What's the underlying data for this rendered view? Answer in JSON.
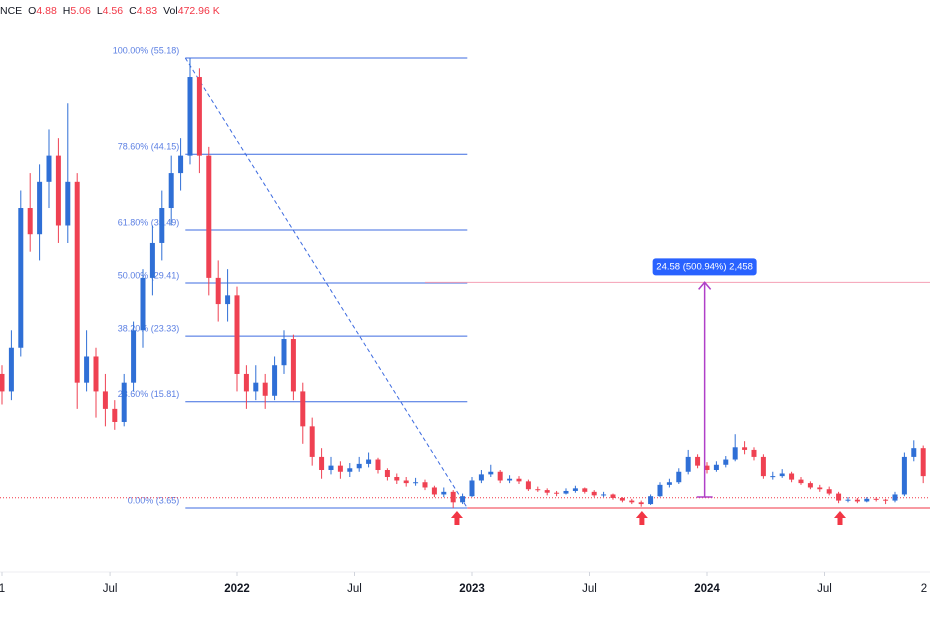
{
  "chart_data": {
    "type": "candlestick",
    "header": {
      "symbol": "NCE",
      "ohlc": [
        {
          "label": "O",
          "value": 4.88
        },
        {
          "label": "H",
          "value": 5.06
        },
        {
          "label": "L",
          "value": 4.56
        },
        {
          "label": "C",
          "value": 4.83
        }
      ],
      "volume": {
        "label": "Vol",
        "value": "472.96 K"
      }
    },
    "up_color": "#2f6fd6",
    "down_color": "#ef4152",
    "xlim": [
      2020.9915,
      2024.949
    ],
    "ylim": [
      -3.45,
      61.82
    ],
    "xticks": [
      {
        "value": 2021,
        "label": "1"
      },
      {
        "value": 2021.46,
        "label": "Jul"
      },
      2022,
      {
        "value": 2022.5,
        "label": "Jul"
      },
      2023,
      {
        "value": 2023.5,
        "label": "Jul"
      },
      2024,
      {
        "value": 2024.5,
        "label": "Jul"
      },
      {
        "value": 2025,
        "label": "2"
      }
    ],
    "x": [
      2021,
      2021.04,
      2021.08,
      2021.12,
      2021.16,
      2021.2,
      2021.24,
      2021.28,
      2021.32,
      2021.36,
      2021.4,
      2021.44,
      2021.48,
      2021.52,
      2021.56,
      2021.6,
      2021.64,
      2021.68,
      2021.72,
      2021.76,
      2021.8,
      2021.84,
      2021.88,
      2021.92,
      2021.96,
      2022,
      2022.04,
      2022.08,
      2022.12,
      2022.16,
      2022.2,
      2022.24,
      2022.28,
      2022.32,
      2022.36,
      2022.4,
      2022.44,
      2022.48,
      2022.52,
      2022.56,
      2022.6,
      2022.64,
      2022.68,
      2022.72,
      2022.76,
      2022.8,
      2022.84,
      2022.88,
      2022.92,
      2022.96,
      2023,
      2023.04,
      2023.08,
      2023.12,
      2023.16,
      2023.2,
      2023.24,
      2023.28,
      2023.32,
      2023.36,
      2023.4,
      2023.44,
      2023.48,
      2023.52,
      2023.56,
      2023.6,
      2023.64,
      2023.68,
      2023.72,
      2023.76,
      2023.8,
      2023.84,
      2023.88,
      2023.92,
      2023.96,
      2024,
      2024.04,
      2024.08,
      2024.12,
      2024.16,
      2024.2,
      2024.24,
      2024.28,
      2024.32,
      2024.36,
      2024.4,
      2024.44,
      2024.48,
      2024.52,
      2024.56,
      2024.6,
      2024.64,
      2024.68,
      2024.72,
      2024.76,
      2024.8,
      2024.84,
      2024.88,
      2024.92
    ],
    "candles": [
      [
        19,
        20,
        15.5,
        17
      ],
      [
        17,
        24,
        16,
        22
      ],
      [
        22,
        40,
        21,
        38
      ],
      [
        38,
        42,
        33,
        35
      ],
      [
        35,
        43,
        32,
        41
      ],
      [
        41,
        47,
        38,
        44
      ],
      [
        44,
        46,
        34,
        36
      ],
      [
        36,
        50,
        34,
        41
      ],
      [
        41,
        42,
        15,
        18
      ],
      [
        18,
        24,
        17,
        21
      ],
      [
        21,
        22,
        14,
        17
      ],
      [
        17,
        19,
        13,
        15
      ],
      [
        15,
        16,
        12.6,
        13.5
      ],
      [
        13.5,
        19,
        13,
        18
      ],
      [
        18,
        25,
        17,
        24
      ],
      [
        24,
        31,
        22,
        30
      ],
      [
        30,
        36,
        28,
        34
      ],
      [
        34,
        40,
        32,
        38
      ],
      [
        38,
        44,
        36,
        42
      ],
      [
        42,
        46,
        40,
        44
      ],
      [
        44,
        55.18,
        43,
        53
      ],
      [
        53,
        54,
        42,
        44
      ],
      [
        44,
        45,
        28,
        30
      ],
      [
        30,
        32,
        25,
        27
      ],
      [
        27,
        31,
        25,
        28
      ],
      [
        28,
        29,
        17,
        19
      ],
      [
        19,
        20,
        15,
        17
      ],
      [
        17,
        20,
        16,
        18
      ],
      [
        18,
        19,
        15,
        16.5
      ],
      [
        16.5,
        21,
        16,
        20
      ],
      [
        20,
        24,
        19,
        23
      ],
      [
        23,
        23.5,
        16,
        17
      ],
      [
        17,
        18,
        11,
        13
      ],
      [
        13,
        14,
        8.5,
        9.5
      ],
      [
        9.5,
        10.5,
        7,
        8
      ],
      [
        8,
        9.5,
        7.5,
        8.5
      ],
      [
        8.5,
        9,
        7,
        7.8
      ],
      [
        7.8,
        8.8,
        7.2,
        8.2
      ],
      [
        8.2,
        9.5,
        7.8,
        8.7
      ],
      [
        8.7,
        10,
        8.3,
        9.2
      ],
      [
        9.2,
        9.4,
        7.6,
        8
      ],
      [
        8,
        8.2,
        6.8,
        7.2
      ],
      [
        7.2,
        7.6,
        6.4,
        6.8
      ],
      [
        6.8,
        7.2,
        6.1,
        6.5
      ],
      [
        6.5,
        7.1,
        6.2,
        6.6
      ],
      [
        6.6,
        6.9,
        5.7,
        6
      ],
      [
        6,
        6.2,
        4.9,
        5.2
      ],
      [
        5.2,
        6,
        4.9,
        5.5
      ],
      [
        5.5,
        5.7,
        3.65,
        4.3
      ],
      [
        4.3,
        5.3,
        4.1,
        5
      ],
      [
        5,
        7.2,
        4.9,
        6.8
      ],
      [
        6.8,
        8,
        6.5,
        7.5
      ],
      [
        7.5,
        8.6,
        7.2,
        7.8
      ],
      [
        7.8,
        8,
        6.5,
        6.8
      ],
      [
        6.8,
        7.4,
        6.5,
        7
      ],
      [
        7,
        7.3,
        6.4,
        6.7
      ],
      [
        6.7,
        6.9,
        5.6,
        5.8
      ],
      [
        5.8,
        6.1,
        5.5,
        5.7
      ],
      [
        5.7,
        5.9,
        5.1,
        5.4
      ],
      [
        5.4,
        5.6,
        5,
        5.3
      ],
      [
        5.3,
        5.9,
        5.2,
        5.6
      ],
      [
        5.6,
        6.2,
        5.4,
        5.9
      ],
      [
        5.9,
        6,
        5.3,
        5.5
      ],
      [
        5.5,
        5.7,
        4.9,
        5.1
      ],
      [
        5.1,
        5.5,
        4.9,
        5.2
      ],
      [
        5.2,
        5.3,
        4.6,
        4.8
      ],
      [
        4.8,
        4.9,
        4.3,
        4.5
      ],
      [
        4.5,
        4.7,
        4.1,
        4.3
      ],
      [
        4.3,
        4.5,
        3.8,
        4.1
      ],
      [
        4.1,
        5.2,
        4,
        5
      ],
      [
        5,
        6.6,
        4.9,
        6.3
      ],
      [
        6.3,
        7,
        6,
        6.6
      ],
      [
        6.6,
        8.2,
        6.4,
        7.8
      ],
      [
        7.8,
        10.3,
        7.5,
        9.5
      ],
      [
        9.5,
        9.8,
        8.2,
        8.5
      ],
      [
        8.5,
        8.9,
        7.6,
        8
      ],
      [
        8,
        9,
        7.8,
        8.6
      ],
      [
        8.6,
        9.6,
        8.3,
        9.2
      ],
      [
        9.2,
        12.1,
        9,
        10.6
      ],
      [
        10.6,
        11.3,
        9.8,
        10.3
      ],
      [
        10.3,
        10.6,
        9.1,
        9.5
      ],
      [
        9.5,
        9.8,
        7,
        7.3
      ],
      [
        7.3,
        7.8,
        6.9,
        7.3
      ],
      [
        7.3,
        8.1,
        7.1,
        7.6
      ],
      [
        7.6,
        7.8,
        6.6,
        6.9
      ],
      [
        6.9,
        7.2,
        6.3,
        6.5
      ],
      [
        6.5,
        6.7,
        5.8,
        6
      ],
      [
        6,
        6.3,
        5.5,
        5.8
      ],
      [
        5.8,
        6.1,
        5.1,
        5.3
      ],
      [
        5.3,
        5.5,
        4.2,
        4.5
      ],
      [
        4.5,
        4.9,
        4.3,
        4.6
      ],
      [
        4.6,
        4.8,
        4.2,
        4.4
      ],
      [
        4.4,
        4.9,
        4.3,
        4.7
      ],
      [
        4.7,
        4.9,
        4.4,
        4.6
      ],
      [
        4.6,
        4.7,
        4.1,
        4.5
      ],
      [
        4.5,
        5.5,
        4.3,
        5.2
      ],
      [
        5.2,
        10,
        5,
        9.5
      ],
      [
        9.5,
        11.4,
        9,
        10.5
      ],
      [
        10.5,
        10.8,
        6.5,
        7.3
      ]
    ],
    "fib": {
      "x_start": 2021.78,
      "x_end": 2022.98,
      "color": "#3d6be0",
      "levels": [
        {
          "label": "100.00% (55.18)",
          "value": 55.18
        },
        {
          "label": "78.60% (44.15)",
          "value": 44.15
        },
        {
          "label": "61.80% (35.49)",
          "value": 35.49
        },
        {
          "label": "50.00% (29.41)",
          "value": 29.41
        },
        {
          "label": "38.20% (23.33)",
          "value": 23.33
        },
        {
          "label": "23.60% (15.81)",
          "value": 15.81
        },
        {
          "label": "0.00% (3.65)",
          "value": 3.65
        }
      ]
    },
    "support": {
      "value": 3.65,
      "color": "#f23645"
    },
    "resistance": {
      "value": 29.49,
      "x_start": 2022.8,
      "color": "#f5a0b5"
    },
    "measure": {
      "label": "24.58 (500.94%) 2,458",
      "x": 2023.99,
      "from": 4.91,
      "to": 29.49,
      "color": "#b040c8"
    },
    "arrows": [
      2022.936,
      2023.723,
      2024.566
    ]
  }
}
